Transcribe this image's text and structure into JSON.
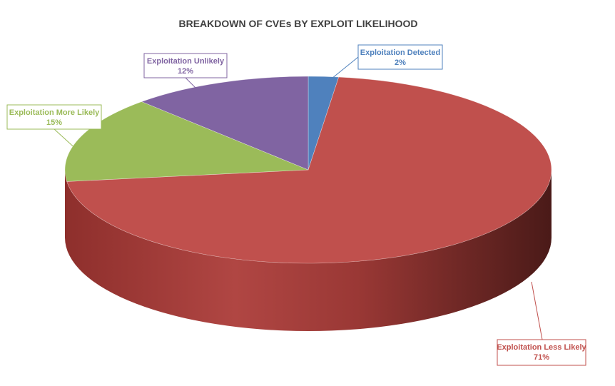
{
  "chart_data": {
    "type": "pie",
    "title": "BREAKDOWN OF CVEs BY EXPLOIT LIKELIHOOD",
    "slices": [
      {
        "name": "Exploitation Detected",
        "value": 2,
        "label": "2%",
        "color": "#4F81BD"
      },
      {
        "name": "Exploitation Less Likely",
        "value": 71,
        "label": "71%",
        "color": "#C0504D"
      },
      {
        "name": "Exploitation More Likely",
        "value": 15,
        "label": "15%",
        "color": "#9BBB59"
      },
      {
        "name": "Exploitation Unlikely",
        "value": 12,
        "label": "12%",
        "color": "#8064A2"
      }
    ],
    "legend": "none",
    "data_labels": "callouts",
    "style": "3d-tilted"
  }
}
